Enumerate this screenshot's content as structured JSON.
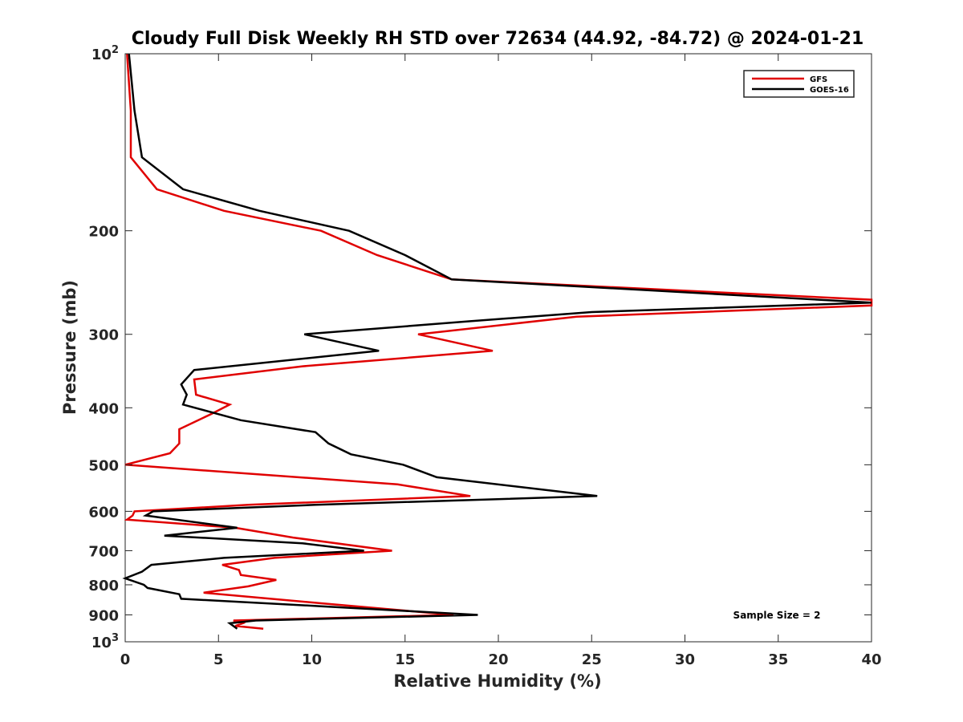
{
  "chart_data": {
    "type": "line",
    "title": "Cloudy Full Disk Weekly RH STD over 72634 (44.92, -84.72) @ 2024-01-21",
    "xlabel": "Relative Humidity (%)",
    "ylabel": "Pressure (mb)",
    "xlim": [
      0,
      40
    ],
    "ylim": [
      100,
      1000
    ],
    "y_scale": "log",
    "y_reversed": true,
    "x_ticks": [
      0,
      5,
      10,
      15,
      20,
      25,
      30,
      35,
      40
    ],
    "x_tick_labels": [
      "0",
      "5",
      "10",
      "15",
      "20",
      "25",
      "30",
      "35",
      "40"
    ],
    "y_ticks": [
      100,
      200,
      300,
      400,
      500,
      600,
      700,
      800,
      900,
      1000
    ],
    "y_tick_labels": [
      {
        "base": "10",
        "exp": "2"
      },
      {
        "base": "200",
        "exp": ""
      },
      {
        "base": "300",
        "exp": ""
      },
      {
        "base": "400",
        "exp": ""
      },
      {
        "base": "500",
        "exp": ""
      },
      {
        "base": "600",
        "exp": ""
      },
      {
        "base": "700",
        "exp": ""
      },
      {
        "base": "800",
        "exp": ""
      },
      {
        "base": "900",
        "exp": ""
      },
      {
        "base": "10",
        "exp": "3"
      }
    ],
    "grid": false,
    "legend_position": "top-right",
    "annotation": "Sample Size = 2",
    "series": [
      {
        "name": "GFS",
        "color": "#e00000",
        "points": [
          [
            0.1,
            100
          ],
          [
            0.3,
            125
          ],
          [
            0.3,
            150
          ],
          [
            1.7,
            170
          ],
          [
            5.3,
            185
          ],
          [
            10.5,
            200
          ],
          [
            13.5,
            220
          ],
          [
            17.5,
            242
          ],
          [
            40,
            262
          ],
          [
            40,
            268
          ],
          [
            24.2,
            280
          ],
          [
            15.7,
            300
          ],
          [
            19.7,
            320
          ],
          [
            9.5,
            340
          ],
          [
            3.7,
            358
          ],
          [
            3.8,
            380
          ],
          [
            5.6,
            395
          ],
          [
            4.6,
            410
          ],
          [
            2.9,
            435
          ],
          [
            2.9,
            460
          ],
          [
            2.4,
            478
          ],
          [
            0,
            500
          ],
          [
            14.6,
            540
          ],
          [
            18.5,
            565
          ],
          [
            6.6,
            585
          ],
          [
            0.5,
            600
          ],
          [
            0.4,
            610
          ],
          [
            0.1,
            620
          ],
          [
            5.9,
            640
          ],
          [
            9.0,
            665
          ],
          [
            14.3,
            700
          ],
          [
            8.0,
            720
          ],
          [
            5.2,
            740
          ],
          [
            6.1,
            755
          ],
          [
            6.2,
            770
          ],
          [
            8.1,
            785
          ],
          [
            6.6,
            805
          ],
          [
            4.2,
            825
          ],
          [
            10.5,
            860
          ],
          [
            17.6,
            900
          ],
          [
            5.8,
            920
          ],
          [
            6.3,
            930
          ],
          [
            5.9,
            940
          ],
          [
            7.4,
            950
          ]
        ]
      },
      {
        "name": "GOES-16",
        "color": "#000000",
        "points": [
          [
            0.2,
            100
          ],
          [
            0.5,
            125
          ],
          [
            0.9,
            150
          ],
          [
            3.1,
            170
          ],
          [
            7.2,
            185
          ],
          [
            12.0,
            200
          ],
          [
            15.0,
            220
          ],
          [
            17.5,
            242
          ],
          [
            40,
            265
          ],
          [
            25.0,
            275
          ],
          [
            18.5,
            285
          ],
          [
            9.6,
            300
          ],
          [
            13.6,
            320
          ],
          [
            3.7,
            345
          ],
          [
            3.0,
            365
          ],
          [
            3.3,
            380
          ],
          [
            3.1,
            395
          ],
          [
            6.2,
            420
          ],
          [
            10.2,
            440
          ],
          [
            10.9,
            460
          ],
          [
            12.1,
            480
          ],
          [
            14.9,
            500
          ],
          [
            16.7,
            525
          ],
          [
            25.3,
            565
          ],
          [
            10.2,
            585
          ],
          [
            1.5,
            600
          ],
          [
            1.1,
            610
          ],
          [
            6.0,
            640
          ],
          [
            2.1,
            660
          ],
          [
            9.5,
            680
          ],
          [
            12.8,
            700
          ],
          [
            5.3,
            720
          ],
          [
            1.4,
            740
          ],
          [
            0.9,
            760
          ],
          [
            0.0,
            780
          ],
          [
            1.0,
            800
          ],
          [
            1.2,
            810
          ],
          [
            2.9,
            830
          ],
          [
            3.0,
            845
          ],
          [
            10.5,
            870
          ],
          [
            18.9,
            900
          ],
          [
            7.0,
            920
          ],
          [
            5.6,
            930
          ],
          [
            6.0,
            950
          ]
        ]
      }
    ]
  }
}
